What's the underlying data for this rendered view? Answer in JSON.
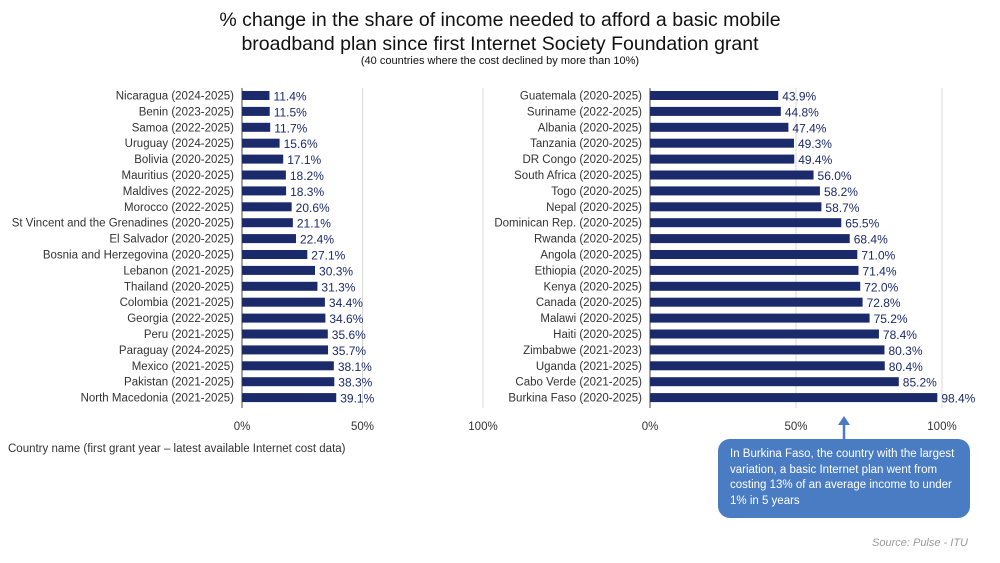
{
  "title_line1": "% change in the share of income needed to afford a basic mobile",
  "title_line2": "broadband plan since first Internet Society Foundation grant",
  "subtitle": "(40 countries where the cost declined by more than 10%)",
  "footnote": "Country name (first grant year – latest available Internet cost data)",
  "callout": "In Burkina Faso, the country with the largest variation, a basic Internet plan went from costing 13% of an average income to under 1% in 5 years",
  "source": "Source: Pulse - ITU",
  "colors": {
    "bar": "#1b2a6b",
    "callout": "#4a7cc3",
    "grid": "#d9d9d9"
  },
  "chart_data": [
    {
      "type": "bar",
      "orientation": "horizontal",
      "xlim": [
        0,
        100
      ],
      "ticks": [
        "0%",
        "50%",
        "100%"
      ],
      "categories": [
        "Nicaragua (2024-2025)",
        "Benin (2023-2025)",
        "Samoa (2022-2025)",
        "Uruguay (2024-2025)",
        "Bolivia (2020-2025)",
        "Mauritius (2020-2025)",
        "Maldives (2022-2025)",
        "Morocco (2022-2025)",
        "St Vincent and the Grenadines (2020-2025)",
        "El Salvador (2020-2025)",
        "Bosnia and Herzegovina (2020-2025)",
        "Lebanon (2021-2025)",
        "Thailand (2020-2025)",
        "Colombia (2021-2025)",
        "Georgia (2022-2025)",
        "Peru (2021-2025)",
        "Paraguay (2024-2025)",
        "Mexico (2021-2025)",
        "Pakistan (2021-2025)",
        "North Macedonia (2021-2025)"
      ],
      "values": [
        11.4,
        11.5,
        11.7,
        15.6,
        17.1,
        18.2,
        18.3,
        20.6,
        21.1,
        22.4,
        27.1,
        30.3,
        31.3,
        34.4,
        34.6,
        35.6,
        35.7,
        38.1,
        38.3,
        39.1
      ],
      "labels": [
        "11.4%",
        "11.5%",
        "11.7%",
        "15.6%",
        "17.1%",
        "18.2%",
        "18.3%",
        "20.6%",
        "21.1%",
        "22.4%",
        "27.1%",
        "30.3%",
        "31.3%",
        "34.4%",
        "34.6%",
        "35.6%",
        "35.7%",
        "38.1%",
        "38.3%",
        "39.1%"
      ]
    },
    {
      "type": "bar",
      "orientation": "horizontal",
      "xlim": [
        0,
        100
      ],
      "ticks": [
        "0%",
        "50%",
        "100%"
      ],
      "categories": [
        "Guatemala (2020-2025)",
        "Suriname (2022-2025)",
        "Albania (2020-2025)",
        "Tanzania (2020-2025)",
        "DR Congo (2020-2025)",
        "South Africa (2020-2025)",
        "Togo (2020-2025)",
        "Nepal (2020-2025)",
        "Dominican Rep. (2020-2025)",
        "Rwanda (2020-2025)",
        "Angola (2020-2025)",
        "Ethiopia (2020-2025)",
        "Kenya (2020-2025)",
        "Canada (2020-2025)",
        "Malawi (2020-2025)",
        "Haiti (2020-2025)",
        "Zimbabwe (2021-2023)",
        "Uganda (2021-2025)",
        "Cabo Verde (2021-2025)",
        "Burkina Faso (2020-2025)"
      ],
      "values": [
        43.9,
        44.8,
        47.4,
        49.3,
        49.4,
        56.0,
        58.2,
        58.7,
        65.5,
        68.4,
        71.0,
        71.4,
        72.0,
        72.8,
        75.2,
        78.4,
        80.3,
        80.4,
        85.2,
        98.4
      ],
      "labels": [
        "43.9%",
        "44.8%",
        "47.4%",
        "49.3%",
        "49.4%",
        "56.0%",
        "58.2%",
        "58.7%",
        "65.5%",
        "68.4%",
        "71.0%",
        "71.4%",
        "72.0%",
        "72.8%",
        "75.2%",
        "78.4%",
        "80.3%",
        "80.4%",
        "85.2%",
        "98.4%"
      ]
    }
  ]
}
